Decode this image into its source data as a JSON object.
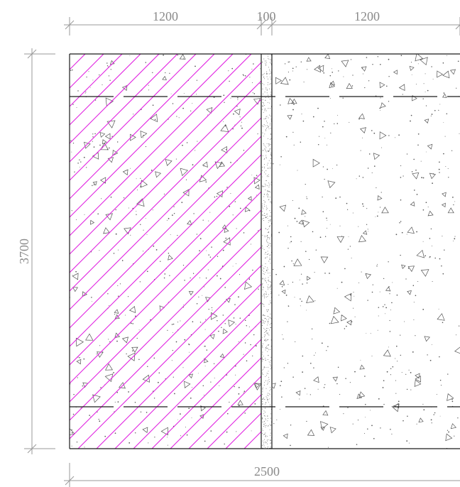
{
  "drawing": {
    "dimensions": {
      "top_left_width": "1200",
      "top_joint_width": "100",
      "top_right_width": "1200",
      "bottom_total_width": "2500",
      "left_height": "3700"
    },
    "colors": {
      "hatch": "#e020e0",
      "outline": "#1a1a1a",
      "dimension_line": "#9a9a9a",
      "aggregate": "#555555"
    },
    "regions": {
      "left_panel": "hatched concrete",
      "joint": "joint strip",
      "right_panel": "concrete"
    }
  }
}
